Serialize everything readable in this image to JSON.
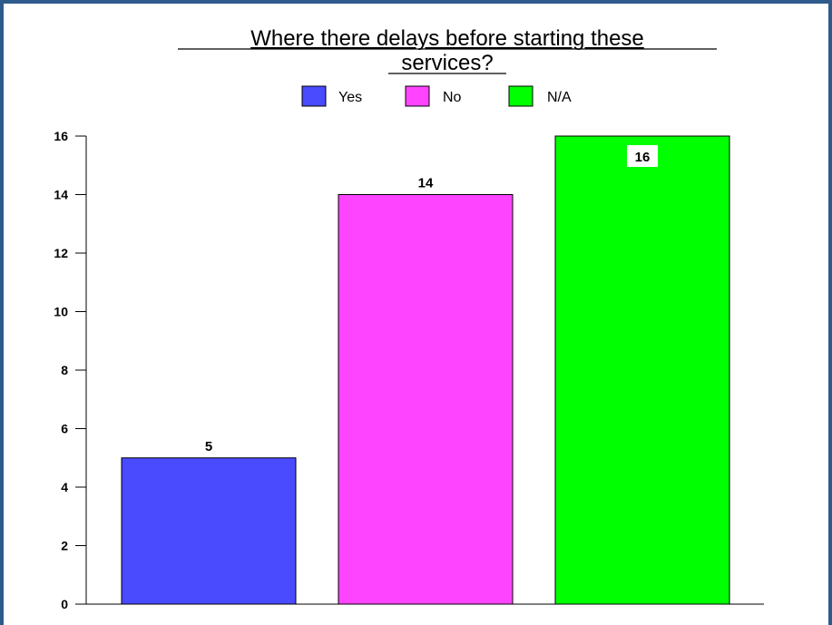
{
  "chart_data": {
    "type": "bar",
    "title": "Where there delays before starting these services?",
    "title_lines": [
      "Where there delays before starting these",
      "services?"
    ],
    "categories": [
      "Yes",
      "No",
      "N/A"
    ],
    "values": [
      5,
      14,
      16
    ],
    "colors": [
      "#4a4aff",
      "#ff44ff",
      "#00ff00"
    ],
    "data_labels": [
      "5",
      "14",
      "16"
    ],
    "legend": [
      {
        "label": "Yes",
        "color": "#4a4aff"
      },
      {
        "label": "No",
        "color": "#ff44ff"
      },
      {
        "label": "N/A",
        "color": "#00ff00"
      }
    ],
    "legend_position": "top-center",
    "y_ticks": [
      "0",
      "2",
      "4",
      "6",
      "8",
      "10",
      "12",
      "14",
      "16"
    ],
    "ylim": [
      0,
      16
    ],
    "xlabel": "",
    "ylabel": "",
    "grid": false
  }
}
